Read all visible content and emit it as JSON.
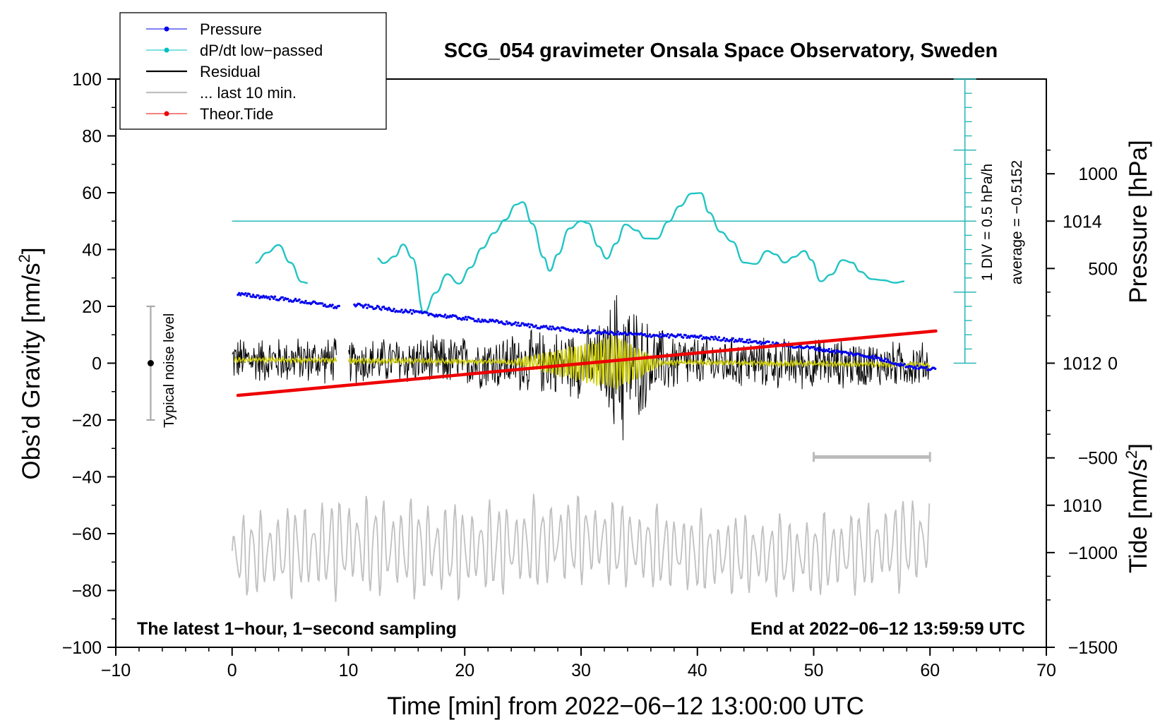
{
  "chart_data": {
    "type": "line",
    "title": "SCG_054 gravimeter Onsala Space Observatory, Sweden",
    "xlabel": "Time [min] from 2022−06−12 13:00:00 UTC",
    "ylabel": "Obs’d Gravity [nm/s²]",
    "ylabel_main": "Obs’d Gravity [nm/s",
    "ylabel_sup": "2",
    "ylabel_end": "]",
    "xlim": [
      -10,
      70
    ],
    "ylim": [
      -100,
      100
    ],
    "x_ticks": [
      "−10",
      "0",
      "10",
      "20",
      "30",
      "40",
      "50",
      "60",
      "70"
    ],
    "y_ticks": [
      "100",
      "80",
      "60",
      "40",
      "20",
      "0",
      "−20",
      "−40",
      "−60",
      "−80",
      "−100"
    ],
    "pressure_axis": {
      "label": "Pressure [hPa]",
      "ticks": [
        "1014",
        "1012",
        "1010"
      ],
      "tick_values": [
        1014,
        1012,
        1010
      ],
      "range_hPa": [
        1008,
        1016
      ]
    },
    "tide_axis": {
      "label_main": "Tide [nm/s",
      "label_sup": "2",
      "label_end": "]",
      "ticks": [
        "1000",
        "500",
        "0",
        "−500",
        "−1000",
        "−1500"
      ],
      "tick_values": [
        1000,
        500,
        0,
        -500,
        -1000,
        -1500
      ],
      "range": [
        -1500,
        1500
      ]
    },
    "dpdt_axis": {
      "label_div": "1 DIV = 0.5 hPa/h",
      "label_avg": "average = −0.5152",
      "x_position": 63,
      "zero_gravity_level": 50,
      "bottom_gravity_level": 0,
      "top_gravity_level": 100,
      "divisions": 20
    },
    "legend": {
      "position": "top-left",
      "entries": [
        {
          "label": "Pressure",
          "color": "#0000ee",
          "marker": "dot"
        },
        {
          "label": "dP/dt low−passed",
          "color": "#00c0c0",
          "marker": "dot"
        },
        {
          "label": "Residual",
          "color": "#000000",
          "marker": "line"
        },
        {
          "label": "... last 10 min.",
          "color": "#c0c0c0",
          "marker": "line"
        },
        {
          "label": "Theor.Tide",
          "color": "#ee0000",
          "marker": "dot"
        }
      ]
    },
    "annotations": {
      "bottom_left": "The latest 1−hour, 1−second sampling",
      "bottom_right": "End at 2022−06−12 13:59:59 UTC",
      "noise_label": "Typical noise level",
      "noise_x": -7,
      "noise_range": [
        -20,
        20
      ],
      "ten_min_bar": [
        50,
        60
      ],
      "ten_min_bar_level": -33
    },
    "gap": [
      9,
      10
    ],
    "series": [
      {
        "name": "Pressure",
        "unit": "hPa",
        "color": "#0000ee",
        "x": [
          0.5,
          3,
          6,
          9,
          10.5,
          15,
          20,
          25,
          30,
          35,
          40,
          45,
          50,
          55,
          58,
          60.5
        ],
        "values": [
          1012.97,
          1012.93,
          1012.87,
          1012.79,
          1012.82,
          1012.73,
          1012.63,
          1012.54,
          1012.45,
          1012.4,
          1012.37,
          1012.3,
          1012.21,
          1012.09,
          1011.96,
          1011.91
        ]
      },
      {
        "name": "dP/dt low-passed",
        "unit": "gravity-equivalent display level",
        "color": "#00c0c0",
        "x": [
          2,
          3,
          4,
          5,
          6,
          6.5,
          12.5,
          13,
          14,
          14.7,
          15.5,
          16.5,
          17.5,
          18.5,
          19.5,
          20.5,
          21.5,
          22.5,
          23.5,
          24.4,
          25,
          25.8,
          26.8,
          27.3,
          28,
          29,
          30,
          30.6,
          31.5,
          32.2,
          33,
          33.8,
          34.8,
          35.5,
          36.5,
          37.5,
          38.5,
          39.5,
          40.3,
          41,
          42,
          43,
          44,
          45,
          46,
          46.7,
          47.5,
          48.3,
          49.2,
          49.8,
          50.6,
          51.5,
          52.5,
          53.3,
          54,
          55,
          56,
          57,
          57.8
        ],
        "values": [
          35.3,
          38.9,
          41.6,
          35.4,
          28.6,
          28.2,
          36.9,
          35.2,
          37.6,
          41.8,
          37,
          17.8,
          24.8,
          31.3,
          28,
          33.7,
          40.5,
          45.8,
          50.5,
          55.8,
          56.7,
          49.1,
          37.2,
          32.5,
          38.3,
          47.4,
          50,
          49.3,
          41.1,
          36.8,
          42.1,
          48.8,
          46.7,
          43.9,
          43.8,
          49.8,
          55.3,
          59.7,
          59.9,
          53,
          46.2,
          42.8,
          35.4,
          34.9,
          39.5,
          38.3,
          35.4,
          37.4,
          39.5,
          36.3,
          28.8,
          31.2,
          36.3,
          35.4,
          32.2,
          29.6,
          29.2,
          28.3,
          28.8
        ]
      },
      {
        "name": "Residual",
        "unit": "nm/s²",
        "color": "#000000",
        "x": [
          0,
          9,
          10,
          20,
          25,
          28,
          30,
          32,
          33,
          33.5,
          34,
          36,
          38,
          40,
          45,
          50,
          55,
          60
        ],
        "values": [
          1.2,
          1,
          0.8,
          0.6,
          0.3,
          0.2,
          0,
          0.3,
          0.5,
          0.2,
          -0.2,
          0,
          0.2,
          0.3,
          0,
          -0.2,
          -0.4,
          -0.6
        ],
        "envelope": [
          9,
          9,
          9,
          10,
          12,
          13,
          14,
          16,
          30,
          35,
          28,
          15,
          12,
          10,
          10,
          10,
          9,
          9
        ]
      },
      {
        "name": "... last 10 min.",
        "unit": "nm/s² (shifted)",
        "color": "#c0c0c0",
        "x": [
          0,
          10,
          20,
          30,
          40,
          50,
          60
        ],
        "values": [
          -68,
          -64,
          -66,
          -62,
          -67,
          -68,
          -62
        ],
        "envelope": [
          12,
          15,
          14,
          13,
          12,
          12,
          14
        ]
      },
      {
        "name": "Theor.Tide",
        "unit": "nm/s²",
        "color": "#ee0000",
        "x": [
          0.5,
          60.5
        ],
        "values": [
          -170,
          170
        ]
      }
    ]
  }
}
